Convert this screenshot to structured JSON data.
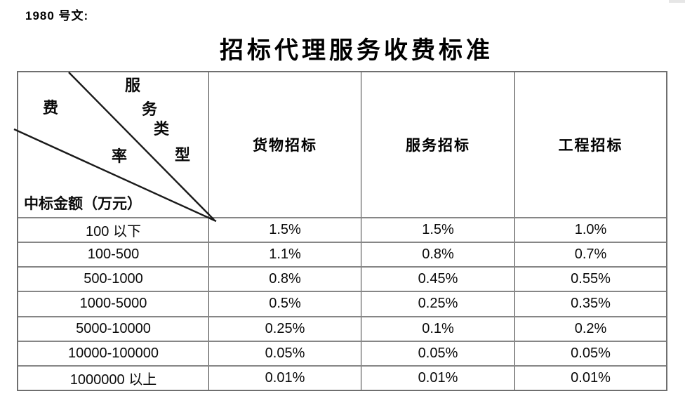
{
  "doc": {
    "ref_label": "1980 号文:"
  },
  "title": "招标代理服务收费标准",
  "table": {
    "corner": {
      "service_type_chars": [
        "服",
        "务",
        "类",
        "型"
      ],
      "rate_chars": [
        "费",
        "率"
      ],
      "amount_label": "中标金额（万元）"
    },
    "columns": [
      "货物招标",
      "服务招标",
      "工程招标"
    ],
    "rows": [
      [
        "100 以下",
        "1.5%",
        "1.5%",
        "1.0%"
      ],
      [
        "100-500",
        "1.1%",
        "0.8%",
        "0.7%"
      ],
      [
        "500-1000",
        "0.8%",
        "0.45%",
        "0.55%"
      ],
      [
        "1000-5000",
        "0.5%",
        "0.25%",
        "0.35%"
      ],
      [
        "5000-10000",
        "0.25%",
        "0.1%",
        "0.2%"
      ],
      [
        "10000-100000",
        "0.05%",
        "0.05%",
        "0.05%"
      ],
      [
        "1000000 以上",
        "0.01%",
        "0.01%",
        "0.01%"
      ]
    ],
    "colors": {
      "text": "#000000",
      "horizontal_border": "#868686",
      "vertical_border": "#3c3c3c",
      "diagonal_line": "#1a1a1a",
      "background": "#ffffff"
    }
  }
}
